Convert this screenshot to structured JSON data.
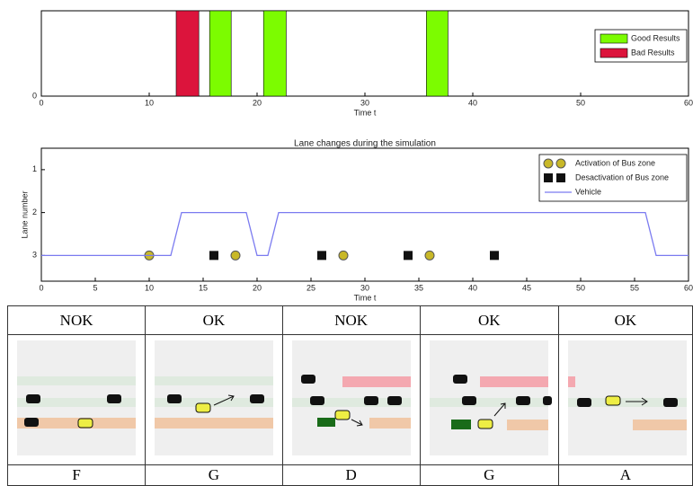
{
  "chart_data": [
    {
      "type": "bar",
      "xlabel": "Time t",
      "xlim": [
        0,
        60
      ],
      "xticks": [
        0,
        10,
        20,
        30,
        40,
        50,
        60
      ],
      "ylim": [
        0,
        1
      ],
      "yticks": [
        0
      ],
      "legend": "upper right",
      "series": [
        {
          "name": "Good Results",
          "color": "#7cfc00",
          "x_start": [
            15.6,
            20.6,
            35.7
          ],
          "x_end": [
            17.6,
            22.7,
            37.7
          ],
          "values": [
            1,
            1,
            1
          ]
        },
        {
          "name": "Bad Results",
          "color": "#dc143c",
          "x_start": [
            12.5
          ],
          "x_end": [
            14.6
          ],
          "values": [
            1
          ]
        }
      ]
    },
    {
      "type": "line",
      "title": "Lane changes during the simulation",
      "xlabel": "Time t",
      "ylabel": "Lane number",
      "xlim": [
        0,
        60
      ],
      "xticks": [
        0,
        5,
        10,
        15,
        20,
        25,
        30,
        35,
        40,
        45,
        50,
        55,
        60
      ],
      "ylim": [
        3.6,
        0.5
      ],
      "yticks": [
        1,
        2,
        3
      ],
      "legend": "upper right",
      "series": [
        {
          "name": "Activation of Bus zone",
          "type": "scatter",
          "marker": "circle",
          "color": "#c8b828",
          "x": [
            10,
            18,
            28,
            36
          ],
          "y": [
            3,
            3,
            3,
            3
          ]
        },
        {
          "name": "Desactivation of Bus zone",
          "type": "scatter",
          "marker": "square",
          "color": "#111111",
          "x": [
            16,
            26,
            34,
            42
          ],
          "y": [
            3,
            3,
            3,
            3
          ]
        },
        {
          "name": "Vehicle",
          "type": "line",
          "color": "#7b7bf0",
          "x": [
            0,
            12,
            13,
            19,
            20,
            21,
            22,
            56,
            57,
            60
          ],
          "y": [
            3,
            3,
            2,
            2,
            3,
            3,
            2,
            2,
            3,
            3
          ]
        }
      ]
    }
  ],
  "table": {
    "header": [
      "NOK",
      "OK",
      "NOK",
      "OK",
      "OK"
    ],
    "footer": [
      "F",
      "G",
      "D",
      "G",
      "A"
    ]
  }
}
